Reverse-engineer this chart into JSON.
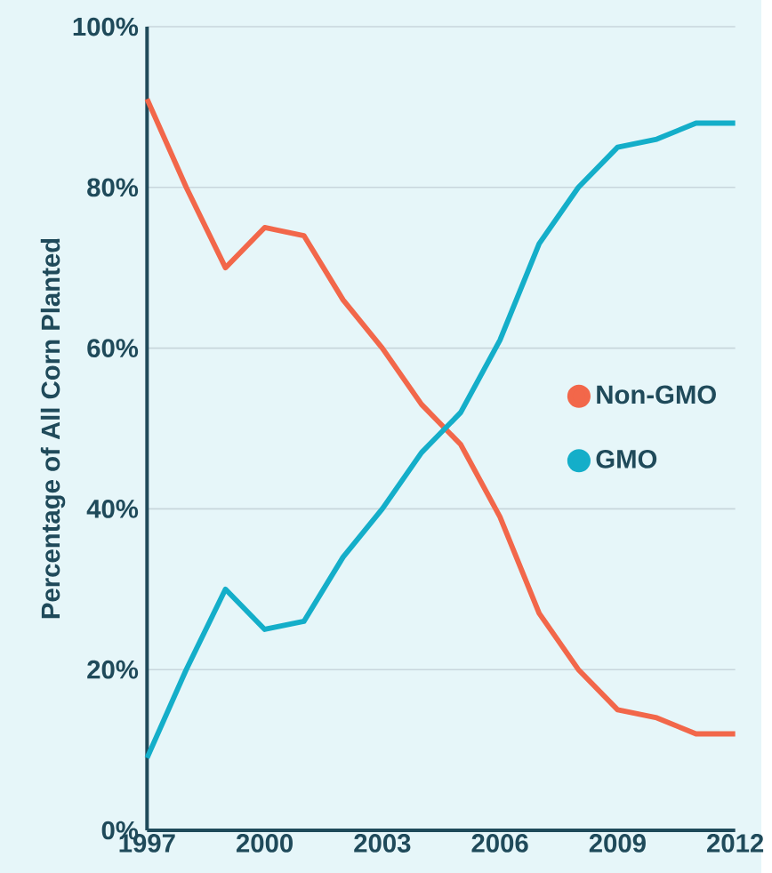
{
  "chart_data": {
    "type": "line",
    "ylabel": "Percentage of All Corn Planted",
    "x": [
      1997,
      1998,
      1999,
      2000,
      2001,
      2002,
      2003,
      2004,
      2005,
      2006,
      2007,
      2008,
      2009,
      2010,
      2011,
      2012
    ],
    "series": [
      {
        "name": "Non-GMO",
        "color": "#f2674a",
        "values": [
          91,
          80,
          70,
          75,
          74,
          66,
          60,
          53,
          48,
          39,
          27,
          20,
          15,
          14,
          12,
          12
        ]
      },
      {
        "name": "GMO",
        "color": "#14aec9",
        "values": [
          9,
          20,
          30,
          25,
          26,
          34,
          40,
          47,
          52,
          61,
          73,
          80,
          85,
          86,
          88,
          88
        ]
      }
    ],
    "xlim": [
      1997,
      2012
    ],
    "ylim": [
      0,
      100
    ],
    "xticks": [
      1997,
      2000,
      2003,
      2006,
      2009,
      2012
    ],
    "yticks": [
      {
        "value": 0,
        "label": "0%"
      },
      {
        "value": 20,
        "label": "20%"
      },
      {
        "value": 40,
        "label": "40%"
      },
      {
        "value": 60,
        "label": "60%"
      },
      {
        "value": 80,
        "label": "80%"
      },
      {
        "value": 100,
        "label": "100%"
      }
    ],
    "grid": "y",
    "legend": "right",
    "marker": "none",
    "line_style": "solid"
  }
}
